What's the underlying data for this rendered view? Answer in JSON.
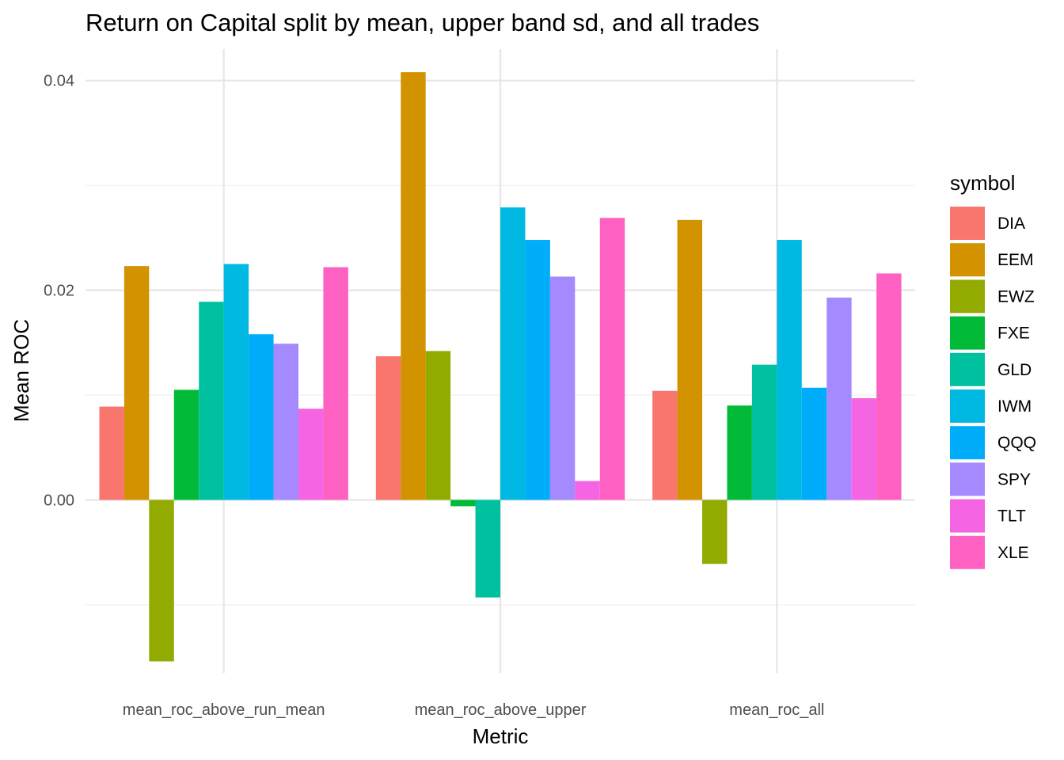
{
  "chart_data": {
    "type": "bar",
    "title": "Return on Capital split by mean, upper band sd, and all trades",
    "xlabel": "Metric",
    "ylabel": "Mean ROC",
    "categories": [
      "mean_roc_above_run_mean",
      "mean_roc_above_upper",
      "mean_roc_all"
    ],
    "ylim": [
      -0.0165,
      0.043
    ],
    "yticks": [
      0.0,
      0.02,
      0.04
    ],
    "ytick_labels": [
      "0.00",
      "0.02",
      "0.04"
    ],
    "grid": true,
    "legend": {
      "title": "symbol",
      "position": "right"
    },
    "series": [
      {
        "name": "DIA",
        "color": "#F8766D",
        "values": [
          0.0089,
          0.0137,
          0.0104
        ]
      },
      {
        "name": "EEM",
        "color": "#D39200",
        "values": [
          0.0223,
          0.0408,
          0.0267
        ]
      },
      {
        "name": "EWZ",
        "color": "#93AA00",
        "values": [
          -0.0154,
          0.0142,
          -0.0061
        ]
      },
      {
        "name": "FXE",
        "color": "#00BA38",
        "values": [
          0.0105,
          -0.0006,
          0.009
        ]
      },
      {
        "name": "GLD",
        "color": "#00C19F",
        "values": [
          0.0189,
          -0.0093,
          0.0129
        ]
      },
      {
        "name": "IWM",
        "color": "#00B9E3",
        "values": [
          0.0225,
          0.0279,
          0.0248
        ]
      },
      {
        "name": "QQQ",
        "color": "#00ADFA",
        "values": [
          0.0158,
          0.0248,
          0.0107
        ]
      },
      {
        "name": "SPY",
        "color": "#A58AFF",
        "values": [
          0.0149,
          0.0213,
          0.0193
        ]
      },
      {
        "name": "TLT",
        "color": "#F564E3",
        "values": [
          0.0087,
          0.0018,
          0.0097
        ]
      },
      {
        "name": "XLE",
        "color": "#FF61C3",
        "values": [
          0.0222,
          0.0269,
          0.0216
        ]
      }
    ]
  }
}
